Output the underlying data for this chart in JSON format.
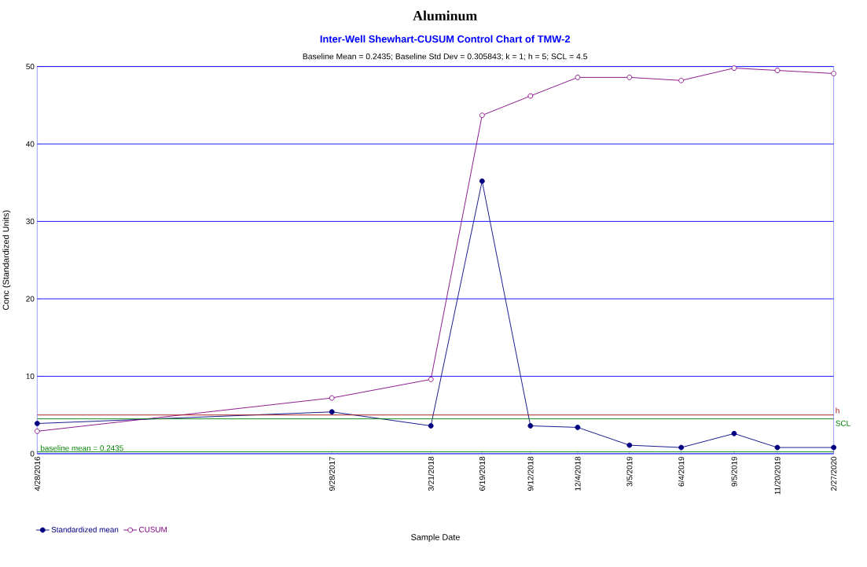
{
  "chart_data": {
    "type": "line",
    "title": "Aluminum",
    "subtitle": "Inter-Well Shewhart-CUSUM Control Chart of TMW-2",
    "annotations": [
      "Baseline Mean = 0.2435; Baseline Std Dev = 0.305843; k = 1; h = 5; SCL = 4.5"
    ],
    "xlabel": "Sample Date",
    "ylabel": "Conc (Standardized Units)",
    "x": [
      "2016-04-28",
      "2017-09-28",
      "2018-03-21",
      "2018-06-19",
      "2018-09-12",
      "2018-12-04",
      "2019-03-05",
      "2019-06-04",
      "2019-09-05",
      "2019-11-20",
      "2020-02-27"
    ],
    "series": [
      {
        "name": "Standardized mean",
        "color": "#000080",
        "marker": "circle",
        "values": [
          3.9,
          5.4,
          3.6,
          35.2,
          3.6,
          3.4,
          1.1,
          0.8,
          2.6,
          0.8,
          0.8
        ]
      },
      {
        "name": "CUSUM",
        "color": "#800080",
        "marker": "circle",
        "values": [
          2.9,
          7.2,
          9.6,
          43.7,
          46.2,
          48.6,
          48.6,
          48.2,
          49.8,
          49.5,
          49.1
        ]
      }
    ],
    "xlim": [
      "2016-04-28",
      "2020-02-27"
    ],
    "ylim": [
      0,
      50
    ],
    "yticks": [
      0,
      10,
      20,
      30,
      40,
      50
    ],
    "xticks": [
      {
        "value": "2016-04-28",
        "label": "4/28/2016"
      },
      {
        "value": "2017-09-28",
        "label": "9/28/2017"
      },
      {
        "value": "2018-03-21",
        "label": "3/21/2018"
      },
      {
        "value": "2018-06-19",
        "label": "6/19/2018"
      },
      {
        "value": "2018-09-12",
        "label": "9/12/2018"
      },
      {
        "value": "2018-12-04",
        "label": "12/4/2018"
      },
      {
        "value": "2019-03-05",
        "label": "3/5/2019"
      },
      {
        "value": "2019-06-04",
        "label": "6/4/2019"
      },
      {
        "value": "2019-09-05",
        "label": "9/5/2019"
      },
      {
        "value": "2019-11-20",
        "label": "11/20/2019"
      },
      {
        "value": "2020-02-27",
        "label": "2/27/2020"
      }
    ],
    "ref_lines": [
      {
        "axis": "y",
        "value": 5,
        "label": "h",
        "color": "#a01010"
      },
      {
        "axis": "y",
        "value": 4.5,
        "label": "SCL",
        "color": "#008000"
      },
      {
        "axis": "y",
        "value": 0.2435,
        "label": "baseline mean = 0.2435",
        "color": "#008000"
      }
    ],
    "grid": "y",
    "legend": "bottom left"
  }
}
